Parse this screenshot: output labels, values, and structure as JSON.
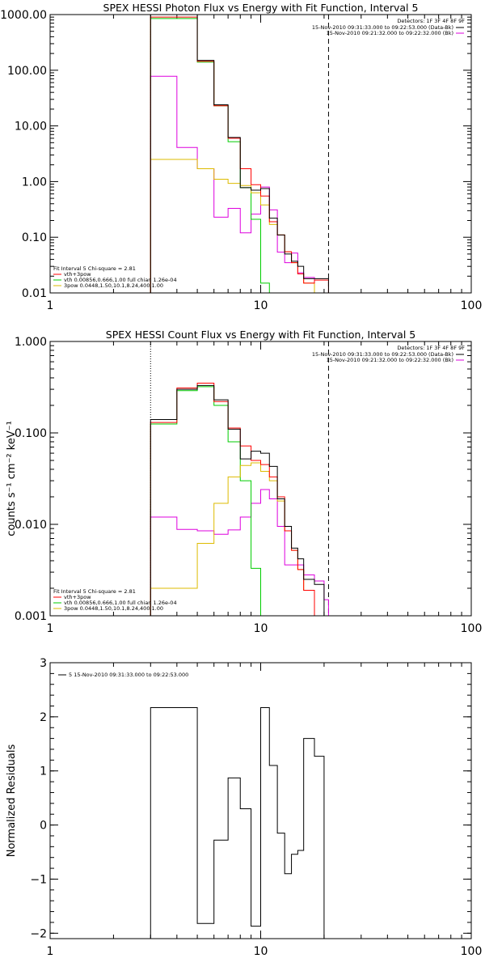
{
  "chart_data": [
    {
      "type": "line",
      "title": "SPEX HESSI Photon Flux vs Energy with Fit Function, Interval 5",
      "xlabel": "",
      "ylabel": "",
      "xscale": "log",
      "yscale": "log",
      "xlim": [
        1,
        100
      ],
      "ylim": [
        0.01,
        1000
      ],
      "xticks": [
        "1",
        "10",
        "100"
      ],
      "yticks": [
        "0.01",
        "0.10",
        "1.00",
        "10.00",
        "100.00",
        "1000.00"
      ],
      "edges": [
        3,
        4,
        5,
        6,
        7,
        8,
        9,
        10,
        11,
        12,
        13,
        14,
        15,
        16,
        18,
        20,
        21
      ],
      "vlines": [
        {
          "x": 3,
          "style": "dotted",
          "color": "#ff8c00"
        },
        {
          "x": 21,
          "style": "dashed",
          "color": "#000000"
        }
      ],
      "header": "Detectors: 1F 3F 4F 8F 9F",
      "key": [
        {
          "label": "15-Nov-2010 09:31:33.000 to 09:22:53.000 (Data-Bk)",
          "color": "#000000"
        },
        {
          "label": "15-Nov-2010 09:21:32.000 to 09:22:32.000 (Bk)",
          "color": "#dd00dd"
        }
      ],
      "fit_legend": {
        "header": "Fit Interval 5   Chi-square = 2.81",
        "items": [
          {
            "label": "vth+3pow",
            "color": "#ff0000"
          },
          {
            "label": "vth 0.00856,0.666,1.00  full chian 1.26e-04",
            "color": "#00cc00"
          },
          {
            "label": "3pow 0.0448,1.50,10.1,8.24,400,1.00",
            "color": "#ddbb00"
          }
        ]
      },
      "series": [
        {
          "color": "#dd00dd",
          "values": [
            78,
            4.1,
            1.7,
            0.23,
            0.33,
            0.12,
            0.26,
            0.8,
            0.31,
            0.054,
            0.035,
            0.052,
            0.023,
            0.019,
            0.0085,
            0.0085
          ]
        },
        {
          "color": "#00cc00",
          "values": [
            850,
            850,
            140,
            23,
            5.2,
            0.78,
            0.21,
            0.015,
            0.0085,
            0.0085,
            0.0085,
            0.0085,
            0.0085,
            0.0085,
            0.0085,
            0.0085
          ]
        },
        {
          "color": "#ddbb00",
          "values": [
            2.5,
            2.5,
            1.7,
            1.1,
            0.93,
            0.85,
            0.63,
            0.38,
            0.17,
            0.11,
            0.055,
            0.035,
            0.022,
            0.015,
            0.0085,
            0.0085
          ]
        },
        {
          "color": "#ff0000",
          "values": [
            900,
            900,
            145,
            23,
            6.0,
            1.7,
            0.88,
            0.55,
            0.19,
            0.11,
            0.055,
            0.035,
            0.022,
            0.015,
            0.017,
            0.017
          ]
        },
        {
          "color": "#000000",
          "values": [
            1000,
            1000,
            150,
            24,
            6.2,
            0.78,
            0.7,
            0.75,
            0.22,
            0.11,
            0.05,
            0.037,
            0.03,
            0.018,
            0.018,
            0.018
          ]
        }
      ]
    },
    {
      "type": "line",
      "title": "SPEX HESSI Count Flux vs Energy with Fit Function, Interval 5",
      "xlabel": "",
      "ylabel": "counts s⁻¹ cm⁻² keV⁻¹",
      "xscale": "log",
      "yscale": "log",
      "xlim": [
        1,
        100
      ],
      "ylim": [
        0.001,
        1
      ],
      "xticks": [
        "1",
        "10",
        "100"
      ],
      "yticks": [
        "0.001",
        "0.010",
        "0.100",
        "1.000"
      ],
      "edges": [
        3,
        4,
        5,
        6,
        7,
        8,
        9,
        10,
        11,
        12,
        13,
        14,
        15,
        16,
        18,
        20,
        21
      ],
      "vlines": [
        {
          "x": 3,
          "style": "dotted",
          "color": "#000000"
        },
        {
          "x": 21,
          "style": "dashed",
          "color": "#000000"
        }
      ],
      "header": "Detectors: 1F 3F 4F 8F 9F",
      "key": [
        {
          "label": "15-Nov-2010 09:31:33.000 to 09:22:53.000 (Data-Bk)",
          "color": "#000000"
        },
        {
          "label": "15-Nov-2010 09:21:32.000 to 09:22:32.000 (Bk)",
          "color": "#dd00dd"
        }
      ],
      "fit_legend": {
        "header": "Fit Interval 5   Chi-square = 2.81",
        "items": [
          {
            "label": "vth+3pow",
            "color": "#ff0000"
          },
          {
            "label": "vth 0.00856,0.666,1.00  full chian 1.26e-04",
            "color": "#00cc00"
          },
          {
            "label": "3pow 0.0448,1.50,10.1,8.24,400,1.00",
            "color": "#ddbb00"
          }
        ]
      },
      "series": [
        {
          "color": "#dd00dd",
          "values": [
            0.012,
            0.0088,
            0.0085,
            0.0078,
            0.0087,
            0.012,
            0.017,
            0.024,
            0.019,
            0.0095,
            0.0036,
            0.0036,
            0.0036,
            0.0028,
            0.0024,
            0.0015
          ]
        },
        {
          "color": "#00cc00",
          "values": [
            0.125,
            0.29,
            0.32,
            0.2,
            0.08,
            0.03,
            0.0033,
            0.0009,
            0.0009,
            0.0009,
            0.0009,
            0.0009,
            0.0009,
            0.0009,
            0.0009,
            0.0009
          ]
        },
        {
          "color": "#ddbb00",
          "values": [
            0.002,
            0.002,
            0.0062,
            0.017,
            0.033,
            0.044,
            0.047,
            0.038,
            0.03,
            0.018,
            0.0085,
            0.0052,
            0.0032,
            0.0019,
            0.0009,
            0.0009
          ]
        },
        {
          "color": "#ff0000",
          "values": [
            0.13,
            0.31,
            0.35,
            0.22,
            0.113,
            0.072,
            0.05,
            0.045,
            0.033,
            0.02,
            0.0085,
            0.0052,
            0.0032,
            0.0019,
            0.0009,
            0.0009
          ]
        },
        {
          "color": "#000000",
          "values": [
            0.14,
            0.3,
            0.33,
            0.23,
            0.11,
            0.052,
            0.063,
            0.06,
            0.043,
            0.019,
            0.0095,
            0.0055,
            0.0042,
            0.0025,
            0.0022,
            0.0009
          ]
        }
      ]
    },
    {
      "type": "line",
      "title": "",
      "xlabel": "",
      "ylabel": "Normalized Residuals",
      "xscale": "log",
      "yscale": "linear",
      "xlim": [
        1,
        100
      ],
      "ylim": [
        -2.1,
        3
      ],
      "xticks": [
        "1",
        "10",
        "100"
      ],
      "yticks": [
        "-2",
        "-1",
        "0",
        "1",
        "2",
        "3"
      ],
      "edges": [
        3,
        4,
        5,
        6,
        7,
        8,
        9,
        10,
        11,
        12,
        13,
        14,
        15,
        16,
        18,
        20,
        21
      ],
      "key": [
        {
          "label": "5  15-Nov-2010 09:31:33.000 to 09:22:53.000",
          "color": "#000000"
        }
      ],
      "series": [
        {
          "color": "#000000",
          "values": [
            2.17,
            2.17,
            -1.82,
            -0.28,
            0.87,
            0.3,
            -1.87,
            2.17,
            1.1,
            -0.15,
            -0.9,
            -0.54,
            -0.47,
            1.6,
            1.27,
            -2.1
          ]
        }
      ]
    }
  ]
}
